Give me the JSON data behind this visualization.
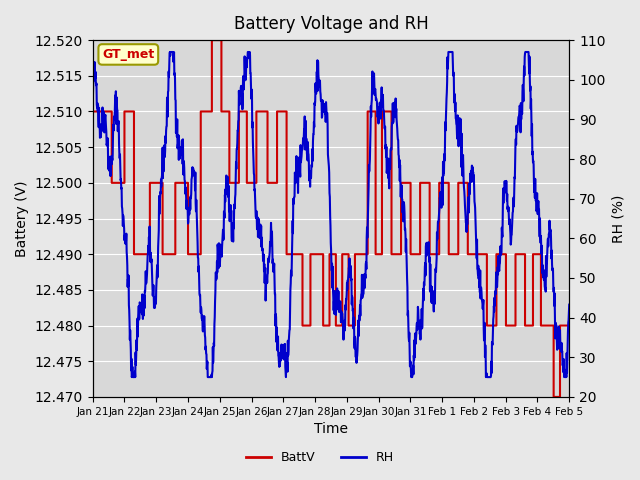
{
  "title": "Battery Voltage and RH",
  "xlabel": "Time",
  "ylabel_left": "Battery (V)",
  "ylabel_right": "RH (%)",
  "ylim_left": [
    12.47,
    12.52
  ],
  "ylim_right": [
    20,
    110
  ],
  "yticks_left": [
    12.47,
    12.475,
    12.48,
    12.485,
    12.49,
    12.495,
    12.5,
    12.505,
    12.51,
    12.515,
    12.52
  ],
  "yticks_right": [
    20,
    30,
    40,
    50,
    60,
    70,
    80,
    90,
    100,
    110
  ],
  "background_color": "#e8e8e8",
  "plot_bg_color": "#d8d8d8",
  "legend_label": "GT_met",
  "annotation_bg": "#ffffcc",
  "annotation_border": "#999900",
  "batt_color": "#cc0000",
  "rh_color": "#0000cc",
  "xtick_labels": [
    "Jan 21",
    "Jan 22",
    "Jan 23",
    "Jan 24",
    "Jan 25",
    "Jan 26",
    "Jan 27",
    "Jan 28",
    "Jan 29",
    "Jan 30",
    "Jan 31",
    "Feb 1",
    "Feb 2",
    "Feb 3",
    "Feb 4",
    "Feb 5"
  ],
  "xtick_positions": [
    0,
    1,
    2,
    3,
    4,
    5,
    6,
    7,
    8,
    9,
    10,
    11,
    12,
    13,
    14,
    15
  ]
}
